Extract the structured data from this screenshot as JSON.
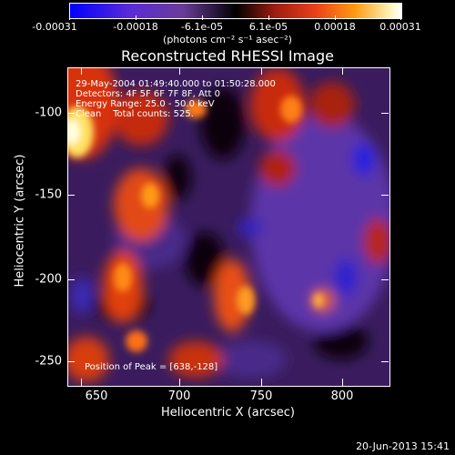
{
  "colorbar": {
    "ticks": [
      "-0.00031",
      "-0.00018",
      "-6.1e-05",
      "6.1e-05",
      "0.00018",
      "0.00031"
    ],
    "units": "(photons cm⁻² s⁻¹ asec⁻²)"
  },
  "title": "Reconstructed RHESSI Image",
  "info": {
    "time": "29-May-2004 01:49:40.000 to 01:50:28.000",
    "detectors": "Detectors: 4F 5F 6F 7F 8F, Att 0",
    "energy": "Energy Range: 25.0 - 50.0 keV",
    "clean": "Clean    Total counts: 525.",
    "peak": "Position of Peak = [638,-128]"
  },
  "axes": {
    "xlabel": "Heliocentric X (arcsec)",
    "ylabel": "Heliocentric Y (arcsec)",
    "xticks": [
      "650",
      "700",
      "750",
      "800"
    ],
    "yticks": [
      "-100",
      "-150",
      "-200",
      "-250"
    ]
  },
  "footer": "20-Jun-2013 15:41"
}
